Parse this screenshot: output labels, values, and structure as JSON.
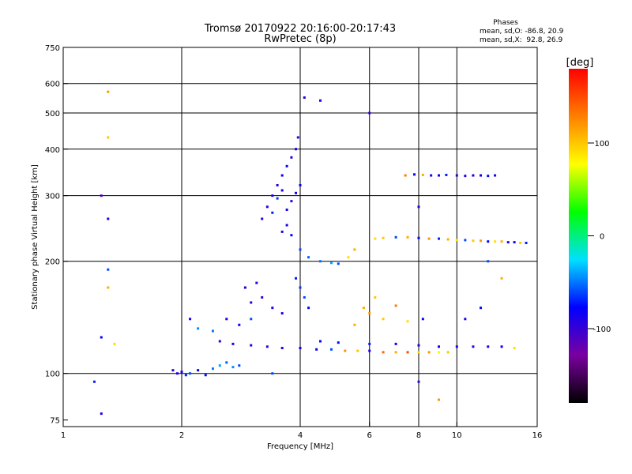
{
  "chart_data": {
    "type": "scatter",
    "title": "Tromsø 20170922 20:16:00-20:17:43",
    "subtitle": "RwPretec (8p)",
    "stats": {
      "heading": "Phases",
      "o_line": "mean, sd,O: -86.8, 20.9",
      "x_line": "mean, sd,X:  92.8, 26.9"
    },
    "xlabel": "Frequency [MHz]",
    "ylabel": "Stationary phase Virtual Height [km]",
    "xscale": "log",
    "yscale": "log",
    "xlim": [
      1,
      16
    ],
    "ylim": [
      72,
      750
    ],
    "xticks": [
      1,
      2,
      4,
      6,
      8,
      10,
      16
    ],
    "yticks": [
      75,
      100,
      200,
      300,
      400,
      500,
      600,
      750
    ],
    "xgrid": [
      2,
      4,
      6,
      8,
      10
    ],
    "ygrid": [
      100,
      200,
      300,
      400,
      500,
      600
    ],
    "colorbar": {
      "label": "[deg]",
      "range": [
        -180,
        180
      ],
      "ticks": [
        100,
        0,
        -100
      ],
      "colormap": [
        "#000000",
        "#7a00a0",
        "#0000ff",
        "#00e0ff",
        "#00ff00",
        "#ffff00",
        "#ff8000",
        "#ff0000"
      ]
    },
    "series": [
      {
        "points": [
          [
            1.9,
            102,
            -95
          ],
          [
            1.95,
            100,
            -90
          ],
          [
            2.0,
            101,
            -85
          ],
          [
            2.05,
            99,
            -70
          ],
          [
            2.1,
            100,
            -60
          ],
          [
            2.2,
            102,
            -80
          ],
          [
            2.3,
            99,
            -75
          ],
          [
            2.4,
            103,
            -50
          ],
          [
            2.5,
            105,
            -40
          ],
          [
            2.6,
            107,
            -55
          ],
          [
            2.7,
            104,
            -45
          ],
          [
            2.8,
            105,
            -60
          ],
          [
            2.5,
            122,
            -90
          ],
          [
            2.7,
            120,
            -85
          ],
          [
            3.0,
            119,
            -95
          ],
          [
            3.3,
            118,
            -100
          ],
          [
            3.6,
            117,
            -90
          ],
          [
            4.0,
            117,
            -85
          ],
          [
            4.4,
            116,
            -80
          ],
          [
            4.8,
            116,
            -60
          ],
          [
            5.2,
            115,
            120
          ],
          [
            5.6,
            115,
            100
          ],
          [
            6.0,
            115,
            -90
          ],
          [
            6.5,
            114,
            140
          ],
          [
            7.0,
            114,
            110
          ],
          [
            7.5,
            114,
            150
          ],
          [
            8.0,
            114,
            90
          ],
          [
            8.5,
            114,
            120
          ],
          [
            9.0,
            114,
            80
          ],
          [
            9.5,
            114,
            100
          ],
          [
            4.5,
            122,
            -80
          ],
          [
            5.0,
            121,
            -75
          ],
          [
            6.0,
            120,
            -70
          ],
          [
            7.0,
            120,
            -85
          ],
          [
            8.0,
            119,
            -90
          ],
          [
            9.0,
            118,
            -80
          ],
          [
            10.0,
            118,
            -90
          ],
          [
            11.0,
            118,
            -95
          ],
          [
            12.0,
            118,
            -85
          ],
          [
            13.0,
            118,
            -80
          ],
          [
            14.0,
            117,
            90
          ],
          [
            3.2,
            260,
            -95
          ],
          [
            3.3,
            280,
            -90
          ],
          [
            3.4,
            300,
            -85
          ],
          [
            3.5,
            320,
            -95
          ],
          [
            3.6,
            340,
            -80
          ],
          [
            3.7,
            360,
            -75
          ],
          [
            3.8,
            380,
            -90
          ],
          [
            3.9,
            400,
            -85
          ],
          [
            3.95,
            430,
            -100
          ],
          [
            3.4,
            270,
            -70
          ],
          [
            3.5,
            295,
            -65
          ],
          [
            3.6,
            310,
            -80
          ],
          [
            3.7,
            275,
            -90
          ],
          [
            3.8,
            290,
            -95
          ],
          [
            3.9,
            305,
            -85
          ],
          [
            4.0,
            320,
            -75
          ],
          [
            3.6,
            240,
            -90
          ],
          [
            3.7,
            250,
            -85
          ],
          [
            3.8,
            235,
            -80
          ],
          [
            4.0,
            215,
            -60
          ],
          [
            4.2,
            205,
            -55
          ],
          [
            4.5,
            200,
            -50
          ],
          [
            4.8,
            198,
            -40
          ],
          [
            5.0,
            197,
            -60
          ],
          [
            5.3,
            205,
            90
          ],
          [
            5.5,
            215,
            110
          ],
          [
            3.9,
            180,
            -70
          ],
          [
            4.0,
            170,
            -65
          ],
          [
            4.1,
            160,
            -60
          ],
          [
            4.2,
            150,
            -75
          ],
          [
            3.0,
            155,
            -95
          ],
          [
            3.2,
            160,
            -100
          ],
          [
            3.4,
            150,
            -90
          ],
          [
            3.6,
            145,
            -85
          ],
          [
            2.6,
            140,
            -90
          ],
          [
            2.8,
            135,
            -80
          ],
          [
            3.0,
            140,
            -60
          ],
          [
            2.4,
            130,
            -50
          ],
          [
            2.2,
            132,
            -45
          ],
          [
            2.1,
            140,
            -85
          ],
          [
            2.9,
            170,
            -90
          ],
          [
            3.1,
            175,
            -95
          ],
          [
            6.2,
            230,
            90
          ],
          [
            6.5,
            231,
            100
          ],
          [
            7.0,
            232,
            -60
          ],
          [
            7.5,
            232,
            110
          ],
          [
            8.0,
            231,
            -80
          ],
          [
            8.5,
            230,
            120
          ],
          [
            9.0,
            230,
            -70
          ],
          [
            9.5,
            229,
            110
          ],
          [
            10.0,
            228,
            90
          ],
          [
            10.5,
            228,
            -60
          ],
          [
            11.0,
            227,
            100
          ],
          [
            11.5,
            227,
            120
          ],
          [
            12.0,
            226,
            -80
          ],
          [
            12.5,
            226,
            90
          ],
          [
            13.0,
            226,
            110
          ],
          [
            13.5,
            225,
            -90
          ],
          [
            14.0,
            225,
            -85
          ],
          [
            14.5,
            224,
            100
          ],
          [
            15.0,
            224,
            -70
          ],
          [
            7.4,
            340,
            130
          ],
          [
            7.8,
            342,
            -80
          ],
          [
            8.2,
            341,
            110
          ],
          [
            8.6,
            340,
            -90
          ],
          [
            9.0,
            340,
            -85
          ],
          [
            9.4,
            341,
            -70
          ],
          [
            10.0,
            340,
            -95
          ],
          [
            10.5,
            339,
            -90
          ],
          [
            11.0,
            340,
            -85
          ],
          [
            11.5,
            340,
            -80
          ],
          [
            12.0,
            339,
            -75
          ],
          [
            12.5,
            340,
            -90
          ],
          [
            5.8,
            150,
            110
          ],
          [
            6.0,
            145,
            120
          ],
          [
            6.5,
            140,
            100
          ],
          [
            7.0,
            152,
            130
          ],
          [
            5.5,
            135,
            110
          ],
          [
            6.2,
            160,
            100
          ],
          [
            7.5,
            138,
            90
          ],
          [
            1.3,
            570,
            120
          ],
          [
            1.3,
            430,
            100
          ],
          [
            1.25,
            300,
            -110
          ],
          [
            1.3,
            260,
            -90
          ],
          [
            1.3,
            190,
            -60
          ],
          [
            1.3,
            170,
            110
          ],
          [
            1.25,
            125,
            -80
          ],
          [
            1.35,
            120,
            90
          ],
          [
            1.2,
            95,
            -70
          ],
          [
            1.25,
            78,
            -90
          ],
          [
            3.4,
            100,
            -60
          ],
          [
            6.0,
            500,
            -100
          ],
          [
            4.5,
            540,
            -90
          ],
          [
            4.1,
            550,
            -95
          ],
          [
            8.0,
            95,
            -100
          ],
          [
            9.0,
            85,
            120
          ],
          [
            8.0,
            280,
            -90
          ],
          [
            8.2,
            140,
            -80
          ],
          [
            10.5,
            140,
            -85
          ],
          [
            11.5,
            150,
            -75
          ],
          [
            12.0,
            200,
            -60
          ],
          [
            13.0,
            180,
            110
          ]
        ]
      }
    ]
  }
}
